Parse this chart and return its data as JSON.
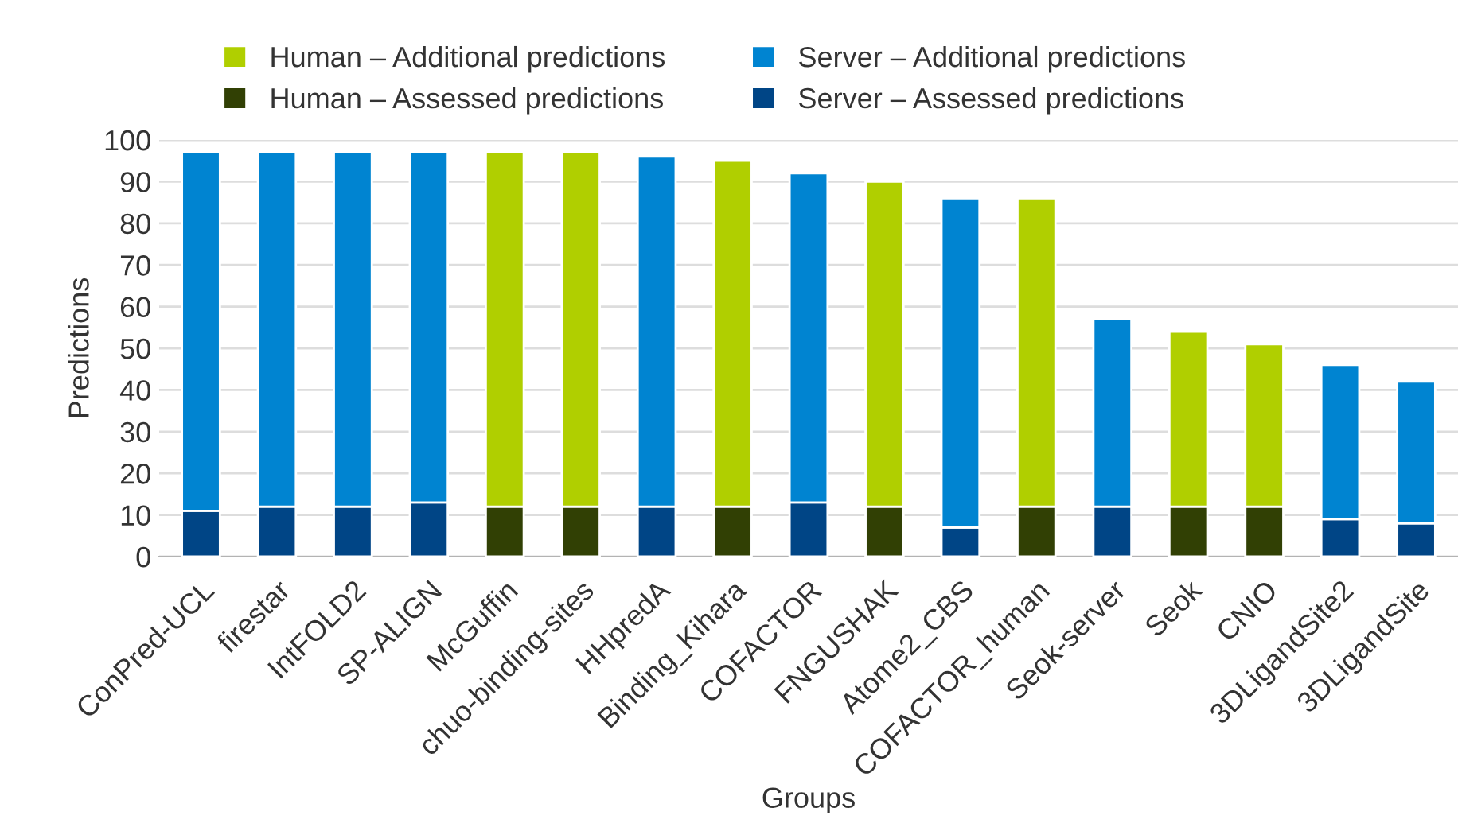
{
  "chart_data": {
    "type": "bar",
    "stacked": true,
    "xlabel": "Groups",
    "ylabel": "Predictions",
    "categories": [
      "ConPred-UCL",
      "firestar",
      "IntFOLD2",
      "SP-ALIGN",
      "McGuffin",
      "chuo-binding-sites",
      "HHpredA",
      "Binding_Kihara",
      "COFACTOR",
      "FNGUSHAK",
      "Atome2_CBS",
      "COFACTOR_human",
      "Seok-server",
      "Seok",
      "CNIO",
      "3DLigandSite2",
      "3DLigandSite"
    ],
    "series": [
      {
        "name": "Server – Assessed predictions",
        "color": "#004586",
        "values": [
          11,
          12,
          12,
          13,
          null,
          null,
          12,
          null,
          13,
          null,
          7,
          null,
          12,
          null,
          null,
          9,
          8
        ]
      },
      {
        "name": "Human – Assessed predictions",
        "color": "#314004",
        "values": [
          null,
          null,
          null,
          null,
          12,
          12,
          null,
          12,
          null,
          12,
          null,
          12,
          null,
          12,
          12,
          null,
          null
        ]
      },
      {
        "name": "Server – Additional predictions",
        "color": "#0084d1",
        "values": [
          86,
          85,
          85,
          84,
          null,
          null,
          84,
          null,
          79,
          null,
          79,
          null,
          45,
          null,
          null,
          37,
          34
        ]
      },
      {
        "name": "Human – Additional predictions",
        "color": "#b0cf00",
        "values": [
          null,
          null,
          null,
          null,
          85,
          85,
          null,
          83,
          null,
          78,
          null,
          74,
          null,
          42,
          39,
          null,
          null
        ]
      }
    ],
    "ylim": [
      0,
      100
    ],
    "yticks": [
      0,
      10,
      20,
      30,
      40,
      50,
      60,
      70,
      80,
      90,
      100
    ],
    "grid": "y",
    "legend": "top"
  }
}
